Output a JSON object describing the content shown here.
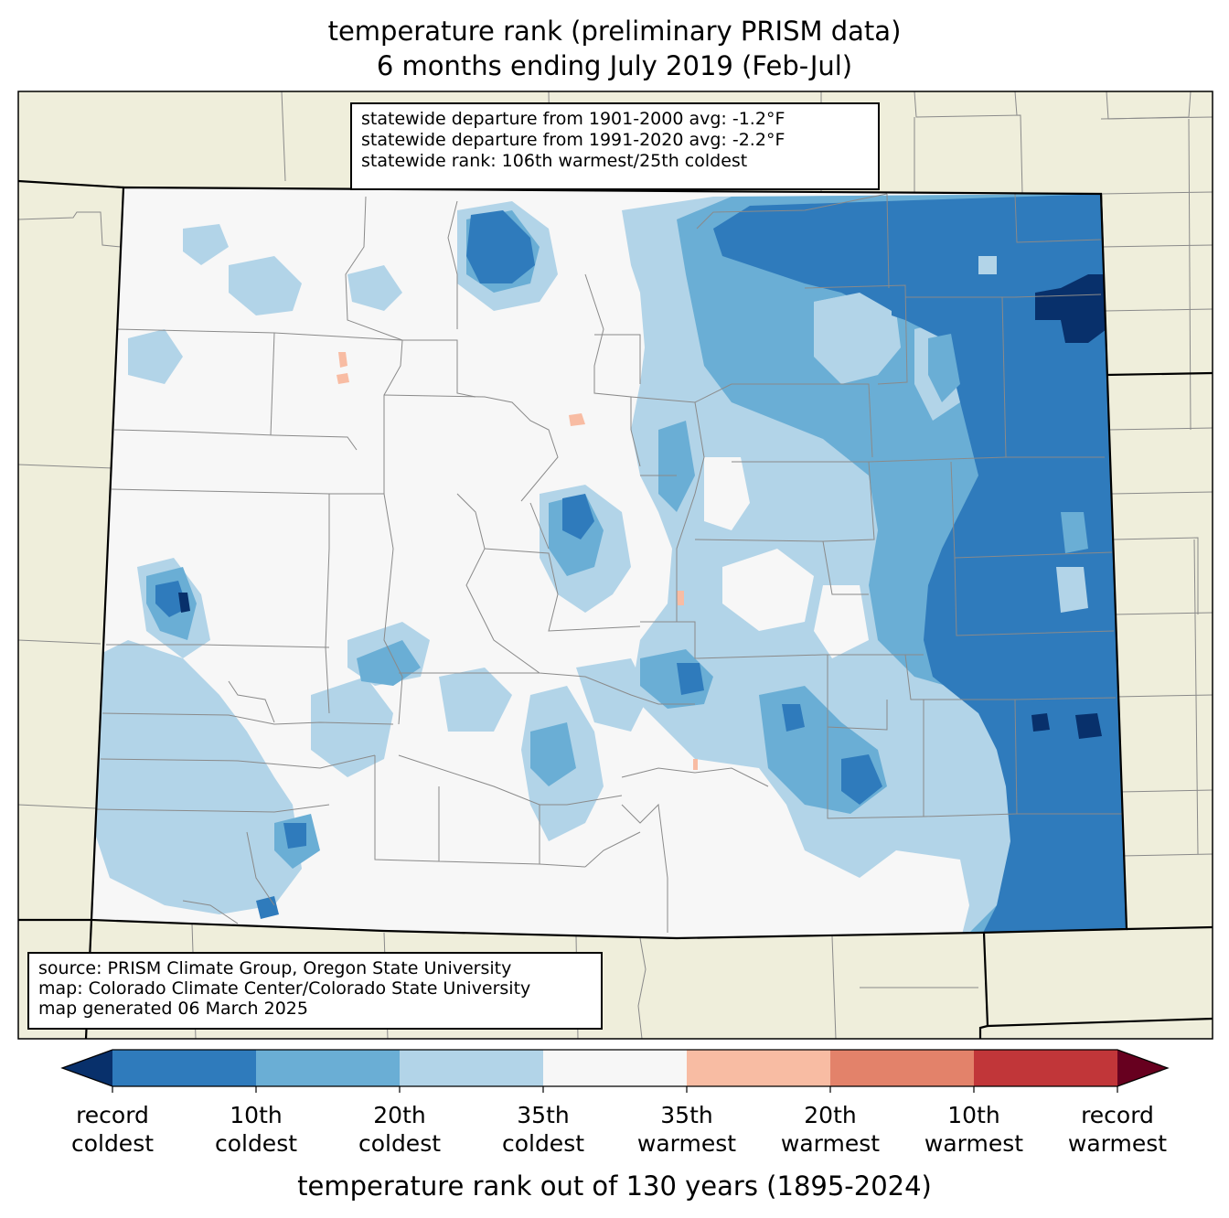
{
  "title": {
    "line1": "temperature rank (preliminary PRISM data)",
    "line2": "6 months ending July 2019 (Feb-Jul)"
  },
  "stats_box": {
    "line1": "statewide departure from 1901-2000 avg: -1.2°F",
    "line2": "statewide departure from 1991-2020 avg: -2.2°F",
    "line3": "statewide rank: 106th warmest/25th coldest"
  },
  "source_box": {
    "line1": "source: PRISM Climate Group, Oregon State University",
    "line2": "map: Colorado Climate Center/Colorado State University",
    "line3": "map generated 06 March 2025"
  },
  "colors": {
    "land_background": "#efeedb",
    "record_coldest": "#08306b",
    "coldest_1_10": "#2f7bbc",
    "coldest_10_20": "#6aaed5",
    "coldest_20_35": "#b2d4e8",
    "near_normal": "#f7f7f7",
    "warmest_20_35": "#f8bca3",
    "warmest_10_20": "#e3826a",
    "warmest_1_10": "#c13639",
    "record_warmest": "#67001f",
    "county_lines": "#8a8a8a",
    "state_lines": "#000000"
  },
  "colorbar": {
    "bins": [
      "record_coldest",
      "coldest_1_10",
      "coldest_10_20",
      "coldest_20_35",
      "near_normal",
      "warmest_20_35",
      "warmest_10_20",
      "warmest_1_10",
      "record_warmest"
    ],
    "tick_labels": [
      {
        "line1": "record",
        "line2": "coldest"
      },
      {
        "line1": "10th",
        "line2": "coldest"
      },
      {
        "line1": "20th",
        "line2": "coldest"
      },
      {
        "line1": "35th",
        "line2": "coldest"
      },
      {
        "line1": "35th",
        "line2": "warmest"
      },
      {
        "line1": "20th",
        "line2": "warmest"
      },
      {
        "line1": "10th",
        "line2": "warmest"
      },
      {
        "line1": "record",
        "line2": "warmest"
      }
    ],
    "title": "temperature rank out of 130 years (1895-2024)"
  }
}
